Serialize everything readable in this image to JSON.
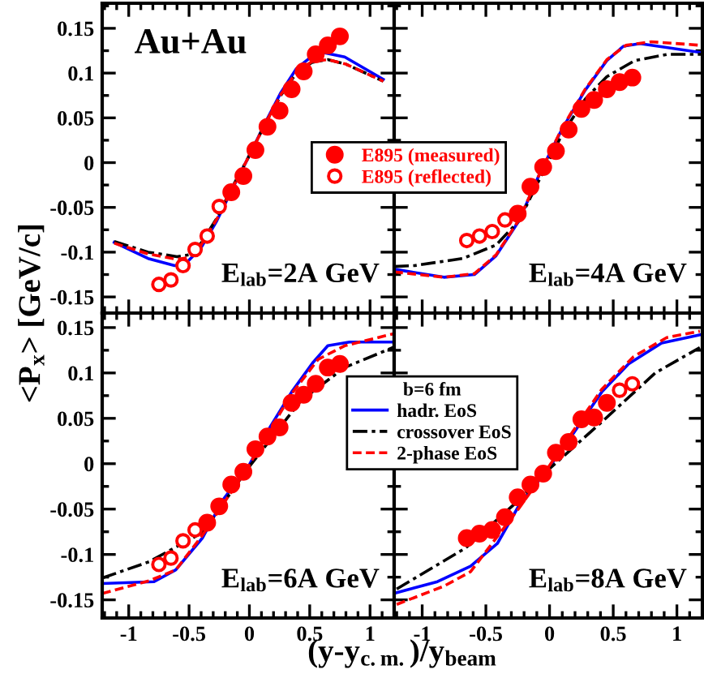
{
  "chart_data": [
    {
      "type": "line",
      "ylabel": "<P$_{x}$> [GeV/c]",
      "annotations": [
        "Au+Au",
        "E$_{lab}$=2A GeV"
      ],
      "xlim": [
        -1.22,
        1.2
      ],
      "ylim": [
        -0.168,
        0.178
      ],
      "xticks": [
        -1,
        -0.5,
        0,
        0.5,
        1
      ],
      "yticks": [
        -0.15,
        -0.1,
        -0.05,
        0,
        0.05,
        0.1,
        0.15
      ],
      "tick_labels": "y",
      "legend": "right",
      "grid": false,
      "series": [
        {
          "color": "#0000ff",
          "line_style": "solid",
          "x": [
            -1.12,
            -0.84,
            -0.62,
            -0.53,
            -0.4,
            -0.27,
            -0.14,
            0,
            0.13,
            0.26,
            0.39,
            0.52,
            0.61,
            0.79,
            1.11
          ],
          "values": [
            -0.089,
            -0.107,
            -0.115,
            -0.113,
            -0.095,
            -0.065,
            -0.029,
            0.008,
            0.044,
            0.078,
            0.105,
            0.119,
            0.123,
            0.118,
            0.093
          ]
        },
        {
          "color": "#000000",
          "line_style": "dashdot",
          "x": [
            -1.12,
            -0.84,
            -0.6,
            -0.5,
            -0.4,
            -0.27,
            -0.14,
            0,
            0.13,
            0.26,
            0.39,
            0.52,
            0.65,
            0.8,
            1.11
          ],
          "values": [
            -0.088,
            -0.1,
            -0.105,
            -0.103,
            -0.09,
            -0.062,
            -0.027,
            0.008,
            0.043,
            0.075,
            0.1,
            0.112,
            0.115,
            0.11,
            0.091
          ]
        },
        {
          "color": "#ff0000",
          "line_style": "dashed",
          "x": [
            -1.12,
            -0.84,
            -0.6,
            -0.5,
            -0.4,
            -0.27,
            -0.14,
            0,
            0.13,
            0.26,
            0.39,
            0.52,
            0.65,
            0.8,
            1.11
          ],
          "values": [
            -0.09,
            -0.102,
            -0.108,
            -0.106,
            -0.092,
            -0.063,
            -0.028,
            0.008,
            0.043,
            0.076,
            0.101,
            0.113,
            0.115,
            0.11,
            0.091
          ]
        },
        {
          "type": "scatter",
          "name": "E895 (measured)",
          "color": "#ff0000",
          "marker": "circle",
          "x": [
            -0.15,
            -0.05,
            0.05,
            0.15,
            0.25,
            0.35,
            0.45,
            0.55,
            0.65,
            0.75
          ],
          "values": [
            -0.033,
            -0.015,
            0.014,
            0.04,
            0.058,
            0.082,
            0.102,
            0.121,
            0.131,
            0.141
          ]
        },
        {
          "type": "scatter",
          "name": "E895 (reflected)",
          "color": "#ff0000",
          "marker": "circle-open",
          "x": [
            -0.75,
            -0.65,
            -0.55,
            -0.45,
            -0.35,
            -0.25
          ],
          "values": [
            -0.136,
            -0.131,
            -0.115,
            -0.097,
            -0.082,
            -0.049
          ]
        }
      ]
    },
    {
      "type": "line",
      "annotations": [
        "E$_{lab}$=4A GeV"
      ],
      "xlim": [
        -1.22,
        1.2
      ],
      "ylim": [
        -0.168,
        0.178
      ],
      "xticks": [
        -1,
        -0.5,
        0,
        0.5,
        1
      ],
      "yticks": [
        -0.15,
        -0.1,
        -0.05,
        0,
        0.05,
        0.1,
        0.15
      ],
      "tick_labels": false,
      "grid": false,
      "series": [
        {
          "color": "#0000ff",
          "line_style": "solid",
          "x": [
            -1.22,
            -0.83,
            -0.59,
            -0.42,
            -0.24,
            -0.07,
            0.1,
            0.28,
            0.45,
            0.58,
            0.71,
            1.19
          ],
          "values": [
            -0.119,
            -0.128,
            -0.125,
            -0.104,
            -0.065,
            -0.01,
            0.038,
            0.081,
            0.114,
            0.13,
            0.133,
            0.123
          ]
        },
        {
          "color": "#000000",
          "line_style": "dashdot",
          "x": [
            -1.22,
            -1.06,
            -0.68,
            -0.42,
            -0.24,
            -0.07,
            0.1,
            0.28,
            0.45,
            0.67,
            0.93,
            1.19
          ],
          "values": [
            -0.116,
            -0.115,
            -0.107,
            -0.092,
            -0.065,
            -0.016,
            0.032,
            0.071,
            0.096,
            0.114,
            0.121,
            0.121
          ]
        },
        {
          "color": "#ff0000",
          "line_style": "dashed",
          "x": [
            -1.22,
            -0.83,
            -0.59,
            -0.42,
            -0.24,
            -0.07,
            0.1,
            0.28,
            0.45,
            0.6,
            0.8,
            1.19
          ],
          "values": [
            -0.122,
            -0.128,
            -0.124,
            -0.103,
            -0.064,
            -0.01,
            0.039,
            0.082,
            0.115,
            0.131,
            0.135,
            0.131
          ]
        },
        {
          "type": "scatter",
          "color": "#ff0000",
          "marker": "circle",
          "x": [
            -0.25,
            -0.15,
            -0.05,
            0.05,
            0.15,
            0.25,
            0.35,
            0.45,
            0.55,
            0.65
          ],
          "values": [
            -0.057,
            -0.027,
            -0.005,
            0.013,
            0.037,
            0.06,
            0.07,
            0.082,
            0.09,
            0.095
          ]
        },
        {
          "type": "scatter",
          "color": "#ff0000",
          "marker": "circle-open",
          "x": [
            -0.65,
            -0.55,
            -0.45,
            -0.35
          ],
          "values": [
            -0.087,
            -0.082,
            -0.077,
            -0.064
          ]
        }
      ]
    },
    {
      "type": "line",
      "xlabel": "(y-y$_{c.m.}$)/y$_{beam}$",
      "legend_title": "b=6 fm",
      "annotations": [
        "E$_{lab}$=6A GeV"
      ],
      "xlim": [
        -1.22,
        1.2
      ],
      "ylim": [
        -0.17,
        0.166
      ],
      "xticks": [
        -1,
        -0.5,
        0,
        0.5,
        1
      ],
      "yticks": [
        -0.15,
        -0.1,
        -0.05,
        0,
        0.05,
        0.1,
        0.15
      ],
      "legend": "right",
      "grid": false,
      "series": [
        {
          "name": "hadr. EoS",
          "color": "#0000ff",
          "line_style": "solid",
          "x": [
            -1.22,
            -0.79,
            -0.61,
            -0.39,
            -0.22,
            0,
            0.17,
            0.35,
            0.53,
            0.65,
            0.83,
            1.19
          ],
          "values": [
            -0.132,
            -0.13,
            -0.117,
            -0.082,
            -0.04,
            -0.001,
            0.04,
            0.079,
            0.112,
            0.13,
            0.134,
            0.134
          ]
        },
        {
          "name": "crossover EoS",
          "color": "#000000",
          "line_style": "dashdot",
          "x": [
            -1.22,
            -0.83,
            -0.39,
            0,
            0.43,
            0.79,
            1.19
          ],
          "values": [
            -0.126,
            -0.108,
            -0.076,
            -0.003,
            0.07,
            0.106,
            0.128
          ]
        },
        {
          "name": "2-phase EoS",
          "color": "#ff0000",
          "line_style": "dashed",
          "x": [
            -1.22,
            -0.83,
            -0.61,
            -0.39,
            0,
            0.35,
            0.57,
            0.79,
            1.19
          ],
          "values": [
            -0.143,
            -0.129,
            -0.117,
            -0.079,
            -0.001,
            0.077,
            0.115,
            0.13,
            0.143
          ]
        },
        {
          "type": "scatter",
          "color": "#ff0000",
          "marker": "circle",
          "x": [
            -0.35,
            -0.25,
            -0.15,
            -0.05,
            0.05,
            0.15,
            0.25,
            0.35,
            0.45,
            0.55,
            0.65,
            0.75
          ],
          "values": [
            -0.065,
            -0.047,
            -0.023,
            -0.009,
            0.016,
            0.03,
            0.04,
            0.067,
            0.076,
            0.088,
            0.106,
            0.11
          ]
        },
        {
          "type": "scatter",
          "color": "#ff0000",
          "marker": "circle-open",
          "x": [
            -0.75,
            -0.65,
            -0.55,
            -0.45
          ],
          "values": [
            -0.111,
            -0.104,
            -0.085,
            -0.073
          ]
        }
      ]
    },
    {
      "type": "line",
      "annotations": [
        "E$_{lab}$=8A GeV"
      ],
      "xlim": [
        -1.22,
        1.2
      ],
      "ylim": [
        -0.17,
        0.166
      ],
      "xticks": [
        -1,
        -0.5,
        0,
        0.5,
        1
      ],
      "yticks": [
        -0.15,
        -0.1,
        -0.05,
        0,
        0.05,
        0.1,
        0.15
      ],
      "tick_labels": "x",
      "grid": false,
      "series": [
        {
          "color": "#0000ff",
          "line_style": "solid",
          "x": [
            -1.2,
            -0.88,
            -0.62,
            -0.41,
            -0.24,
            -0.02,
            0.19,
            0.41,
            0.62,
            0.88,
            1.18
          ],
          "values": [
            -0.142,
            -0.13,
            -0.113,
            -0.088,
            -0.046,
            -0.007,
            0.034,
            0.079,
            0.11,
            0.133,
            0.142
          ]
        },
        {
          "color": "#000000",
          "line_style": "dashdot",
          "x": [
            -1.2,
            -0.66,
            -0.24,
            -0.02,
            0.41,
            0.83,
            1.18
          ],
          "values": [
            -0.138,
            -0.093,
            -0.04,
            -0.008,
            0.046,
            0.1,
            0.128
          ]
        },
        {
          "color": "#ff0000",
          "line_style": "dashed",
          "x": [
            -1.2,
            -0.83,
            -0.62,
            -0.24,
            -0.02,
            0.41,
            0.66,
            0.92,
            1.18
          ],
          "values": [
            -0.155,
            -0.135,
            -0.119,
            -0.049,
            -0.006,
            0.082,
            0.118,
            0.139,
            0.146
          ]
        },
        {
          "type": "scatter",
          "color": "#ff0000",
          "marker": "circle",
          "x": [
            -0.65,
            -0.55,
            -0.45,
            -0.35,
            -0.25,
            -0.15,
            -0.05,
            0.05,
            0.15,
            0.25,
            0.35,
            0.45
          ],
          "values": [
            -0.082,
            -0.077,
            -0.073,
            -0.059,
            -0.037,
            -0.023,
            -0.011,
            0.012,
            0.024,
            0.049,
            0.051,
            0.067
          ]
        },
        {
          "type": "scatter",
          "color": "#ff0000",
          "marker": "circle-open",
          "x": [
            0.55,
            0.65
          ],
          "values": [
            0.081,
            0.088
          ]
        }
      ]
    }
  ]
}
